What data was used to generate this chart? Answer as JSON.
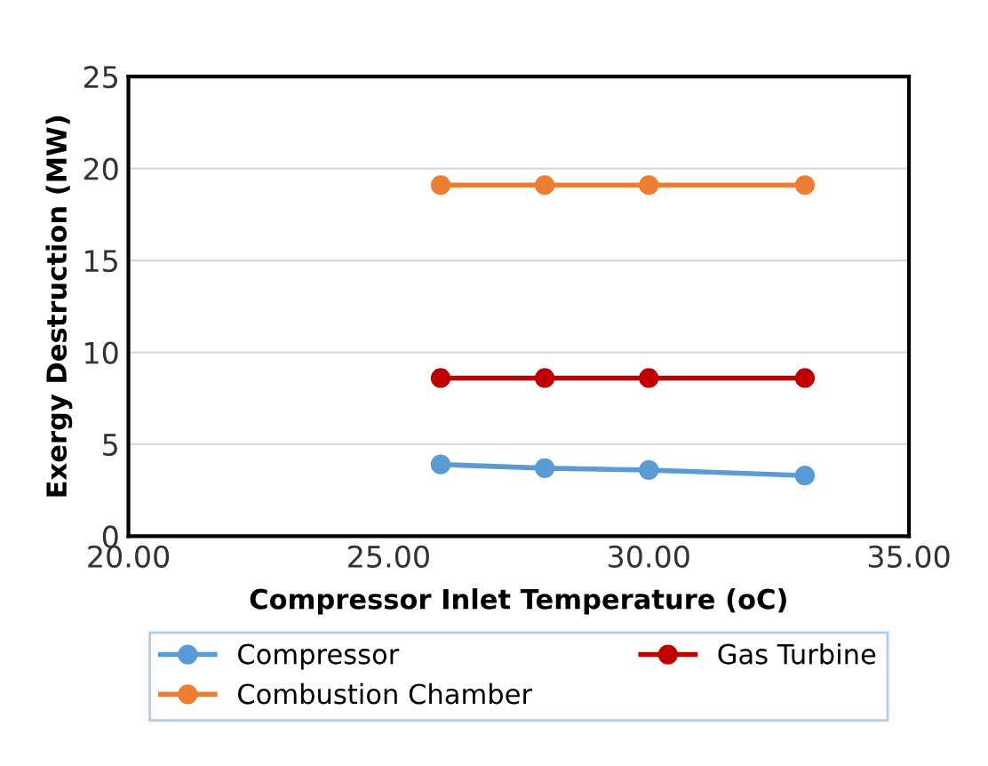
{
  "chart_data": {
    "type": "line",
    "xlabel": "Compressor Inlet Temperature (oC)",
    "ylabel": "Exergy Destruction (MW)",
    "x": [
      26,
      28,
      30,
      33
    ],
    "series": [
      {
        "name": "Compressor",
        "color": "#5b9bd5",
        "values": [
          3.9,
          3.7,
          3.6,
          3.3
        ]
      },
      {
        "name": "Combustion Chamber",
        "color": "#ed7d31",
        "values": [
          19.1,
          19.1,
          19.1,
          19.1
        ]
      },
      {
        "name": "Gas Turbine",
        "color": "#c00000",
        "values": [
          8.6,
          8.6,
          8.6,
          8.6
        ]
      }
    ],
    "xlim": [
      20,
      35
    ],
    "xticks": [
      {
        "value": 20,
        "label": "20.00"
      },
      {
        "value": 25,
        "label": "25.00"
      },
      {
        "value": 30,
        "label": "30.00"
      },
      {
        "value": 35,
        "label": "35.00"
      }
    ],
    "ylim": [
      0,
      25
    ],
    "yticks": [
      0,
      5,
      10,
      15,
      20,
      25
    ],
    "grid": "y",
    "legend": "bottom",
    "marker": "circle",
    "line_style": "solid"
  }
}
